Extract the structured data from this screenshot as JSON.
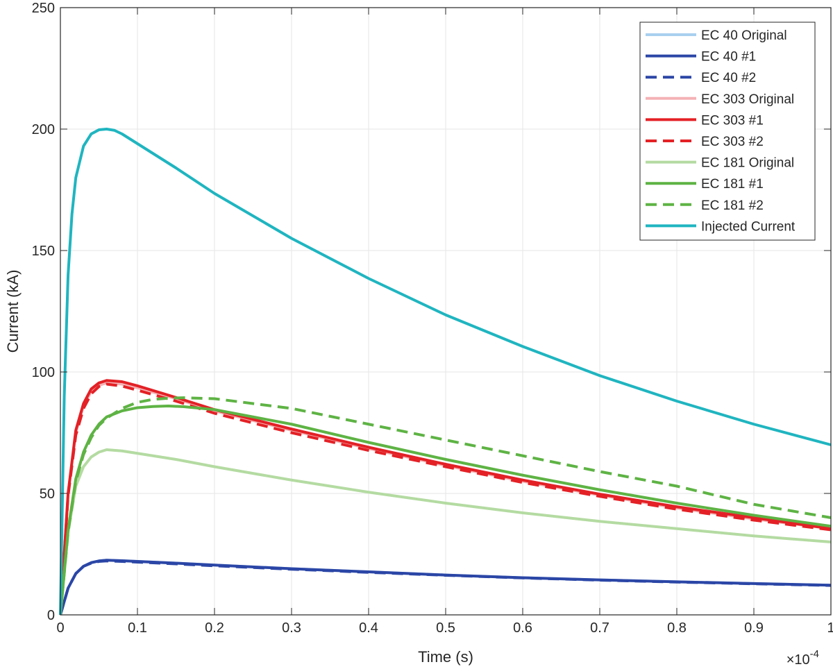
{
  "chart_data": {
    "type": "line",
    "xlabel": "Time (s)",
    "ylabel": "Current (kA)",
    "x_exponent_label": "×10",
    "x_exponent_power": "-4",
    "xlim": [
      0,
      1
    ],
    "ylim": [
      0,
      250
    ],
    "x_ticks": [
      "0",
      "0.1",
      "0.2",
      "0.3",
      "0.4",
      "0.5",
      "0.6",
      "0.7",
      "0.8",
      "0.9",
      "1"
    ],
    "y_ticks": [
      "0",
      "50",
      "100",
      "150",
      "200",
      "250"
    ],
    "grid": true,
    "legend_position": "top-right",
    "series": [
      {
        "name": "EC 40 Original",
        "color": "#a9d0ef",
        "dash": "solid",
        "x": [
          0,
          0.01,
          0.02,
          0.03,
          0.04,
          0.05,
          0.06,
          0.08,
          0.1,
          0.15,
          0.2,
          0.3,
          0.4,
          0.5,
          0.6,
          0.7,
          0.8,
          0.9,
          1.0
        ],
        "y": [
          0,
          11,
          17,
          20,
          21.5,
          22.2,
          22.5,
          22.3,
          22.0,
          21.3,
          20.5,
          19.0,
          17.7,
          16.4,
          15.3,
          14.4,
          13.6,
          12.9,
          12.2
        ]
      },
      {
        "name": "EC 40 #1",
        "color": "#2b46a6",
        "dash": "solid",
        "x": [
          0,
          0.01,
          0.02,
          0.03,
          0.04,
          0.05,
          0.06,
          0.08,
          0.1,
          0.15,
          0.2,
          0.3,
          0.4,
          0.5,
          0.6,
          0.7,
          0.8,
          0.9,
          1.0
        ],
        "y": [
          0,
          11,
          17,
          20,
          21.5,
          22.2,
          22.5,
          22.3,
          22.0,
          21.3,
          20.5,
          19.0,
          17.7,
          16.4,
          15.3,
          14.4,
          13.6,
          12.9,
          12.2
        ]
      },
      {
        "name": "EC 40 #2",
        "color": "#2b46a6",
        "dash": "dashed",
        "x": [
          0,
          0.01,
          0.02,
          0.03,
          0.04,
          0.05,
          0.06,
          0.08,
          0.1,
          0.15,
          0.2,
          0.3,
          0.4,
          0.5,
          0.6,
          0.7,
          0.8,
          0.9,
          1.0
        ],
        "y": [
          0,
          11,
          17,
          20,
          21.3,
          22.0,
          22.2,
          22.0,
          21.7,
          21.0,
          20.2,
          18.8,
          17.5,
          16.3,
          15.2,
          14.3,
          13.5,
          12.8,
          12.1
        ]
      },
      {
        "name": "EC 303 Original",
        "color": "#f4b2b5",
        "dash": "solid",
        "x": [
          0,
          0.01,
          0.02,
          0.03,
          0.04,
          0.05,
          0.06,
          0.08,
          0.1,
          0.15,
          0.2,
          0.3,
          0.4,
          0.5,
          0.6,
          0.7,
          0.8,
          0.9,
          1.0
        ],
        "y": [
          0,
          50,
          75,
          86,
          92,
          94.5,
          95.5,
          95,
          93.5,
          89,
          84,
          76,
          68.5,
          61.5,
          55,
          49.3,
          44,
          39.5,
          35.5
        ]
      },
      {
        "name": "EC 303 #1",
        "color": "#e32126",
        "dash": "solid",
        "x": [
          0,
          0.01,
          0.02,
          0.03,
          0.04,
          0.05,
          0.06,
          0.08,
          0.1,
          0.15,
          0.2,
          0.3,
          0.4,
          0.5,
          0.6,
          0.7,
          0.8,
          0.9,
          1.0
        ],
        "y": [
          0,
          50,
          76,
          87,
          93,
          95.5,
          96.5,
          96,
          94.3,
          89.5,
          84.5,
          76.5,
          69,
          62,
          55.5,
          49.7,
          44.5,
          40,
          35.5
        ]
      },
      {
        "name": "EC 303 #2",
        "color": "#e32126",
        "dash": "dashed",
        "x": [
          0,
          0.01,
          0.02,
          0.03,
          0.04,
          0.05,
          0.06,
          0.08,
          0.1,
          0.15,
          0.2,
          0.3,
          0.4,
          0.5,
          0.6,
          0.7,
          0.8,
          0.9,
          1.0
        ],
        "y": [
          0,
          49,
          74,
          85,
          91,
          94,
          95,
          94.2,
          92.5,
          88,
          83,
          75,
          67.7,
          61,
          54.5,
          48.8,
          43.5,
          39,
          35
        ]
      },
      {
        "name": "EC 181 Original",
        "color": "#b4dba2",
        "dash": "solid",
        "x": [
          0,
          0.01,
          0.02,
          0.03,
          0.04,
          0.05,
          0.06,
          0.08,
          0.1,
          0.15,
          0.2,
          0.3,
          0.4,
          0.5,
          0.6,
          0.7,
          0.8,
          0.9,
          1.0
        ],
        "y": [
          0,
          34,
          53,
          61,
          65,
          67,
          68,
          67.5,
          66.5,
          64,
          61,
          55.5,
          50.5,
          46,
          42,
          38.5,
          35.5,
          32.5,
          30
        ]
      },
      {
        "name": "EC 181 #1",
        "color": "#5eb344",
        "dash": "solid",
        "x": [
          0,
          0.01,
          0.02,
          0.03,
          0.04,
          0.05,
          0.06,
          0.08,
          0.1,
          0.12,
          0.14,
          0.16,
          0.2,
          0.3,
          0.4,
          0.5,
          0.6,
          0.7,
          0.8,
          0.9,
          1.0
        ],
        "y": [
          0,
          35,
          56,
          67,
          74,
          78.5,
          81.5,
          84,
          85.3,
          85.8,
          86,
          85.7,
          84.5,
          78.5,
          71,
          64,
          57.5,
          51.5,
          46,
          41,
          36.5
        ]
      },
      {
        "name": "EC 181 #2",
        "color": "#5eb344",
        "dash": "dashed",
        "x": [
          0,
          0.01,
          0.02,
          0.03,
          0.04,
          0.05,
          0.06,
          0.08,
          0.1,
          0.12,
          0.14,
          0.16,
          0.2,
          0.3,
          0.4,
          0.5,
          0.6,
          0.7,
          0.8,
          0.9,
          1.0
        ],
        "y": [
          0,
          34,
          55,
          66,
          73,
          78,
          81,
          85,
          87.5,
          88.7,
          89.2,
          89.4,
          89,
          85,
          78.5,
          72,
          65.5,
          59,
          53,
          45.5,
          40
        ]
      },
      {
        "name": "Injected Current",
        "color": "#1fb5c0",
        "dash": "solid",
        "x": [
          0,
          0.005,
          0.01,
          0.015,
          0.02,
          0.03,
          0.04,
          0.05,
          0.06,
          0.07,
          0.08,
          0.1,
          0.15,
          0.2,
          0.3,
          0.4,
          0.5,
          0.6,
          0.7,
          0.8,
          0.9,
          1.0
        ],
        "y": [
          0,
          90,
          140,
          165,
          180,
          193,
          198,
          199.7,
          200,
          199.5,
          198,
          194,
          184,
          173.5,
          155,
          138.5,
          123.5,
          110.5,
          98.5,
          88,
          78.5,
          70
        ]
      }
    ]
  }
}
